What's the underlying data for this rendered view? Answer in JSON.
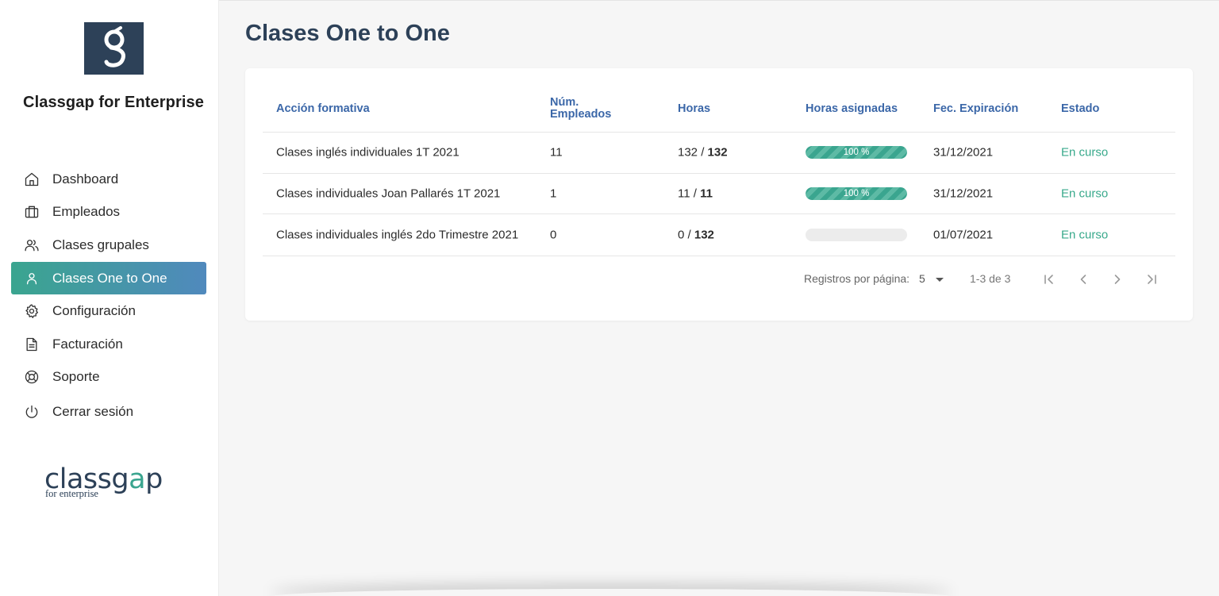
{
  "app": {
    "brand_name": "Classgap for Enterprise",
    "logo_letter": "g",
    "footer_logo": {
      "word_prefix": "classg",
      "word_g": "a",
      "word_suffix": "p",
      "tagline": "for enterprise"
    }
  },
  "sidebar": {
    "items": [
      {
        "label": "Dashboard",
        "icon": "home-icon",
        "active": false
      },
      {
        "label": "Empleados",
        "icon": "briefcase-icon",
        "active": false
      },
      {
        "label": "Clases grupales",
        "icon": "users-icon",
        "active": false
      },
      {
        "label": "Clases One to One",
        "icon": "user-icon",
        "active": true
      },
      {
        "label": "Configuración",
        "icon": "gear-icon",
        "active": false
      },
      {
        "label": "Facturación",
        "icon": "document-icon",
        "active": false
      },
      {
        "label": "Soporte",
        "icon": "lifebuoy-icon",
        "active": false
      },
      {
        "label": "Cerrar sesión",
        "icon": "power-icon",
        "active": false
      }
    ]
  },
  "main": {
    "title": "Clases One to One",
    "table": {
      "headers": [
        "Acción formativa",
        "Núm.",
        "Empleados",
        "Horas",
        "Horas asignadas",
        "Fec. Expiración",
        "Estado"
      ],
      "rows": [
        {
          "accion": "Clases inglés individuales 1T 2021",
          "empleados": "1",
          "empleados_full": "11",
          "horas_used": "132",
          "horas_total": "132",
          "progress": 1.0,
          "progress_label": "100 %",
          "expiracion": "31/12/2021",
          "estado": "En curso"
        },
        {
          "accion": "Clases individuales Joan Pallarés 1T 2021",
          "empleados_full": "1",
          "horas_used": "11",
          "horas_total": "11",
          "progress": 1.0,
          "progress_label": "100 %",
          "expiracion": "31/12/2021",
          "estado": "En curso"
        },
        {
          "accion": "Clases individuales inglés 2do Trimestre 2021",
          "empleados_full": "0",
          "horas_used": "0",
          "horas_total": "132",
          "progress": 0.0,
          "progress_label": "",
          "expiracion": "01/07/2021",
          "estado": "En curso"
        }
      ]
    },
    "pagination": {
      "label": "Registros por página:",
      "page_size": "5",
      "range": "1-3 de 3"
    }
  },
  "colors": {
    "brand_dark": "#2d4158",
    "accent_green": "#3aa58f",
    "accent_blue": "#5089bd",
    "header_blue": "#3b67a8",
    "status_green": "#38a98b"
  }
}
